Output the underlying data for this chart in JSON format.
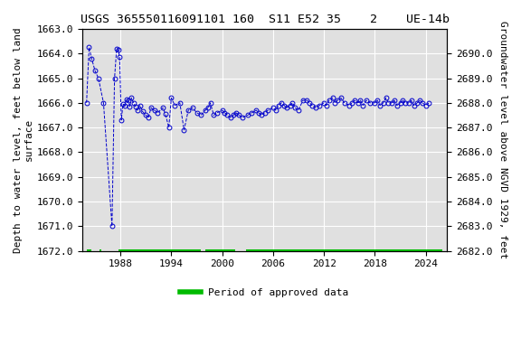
{
  "title": "USGS 365550116091101 160  S11 E52 35    2    UE-14b",
  "ylabel_left": "Depth to water level, feet below land\nsurface",
  "ylabel_right": "Groundwater level above NGVD 1929, feet",
  "ylim_left": [
    1672.0,
    1663.0
  ],
  "ylim_right": [
    2682.0,
    2691.0
  ],
  "xlim": [
    1983.5,
    2026.5
  ],
  "xticks": [
    1988,
    1994,
    2000,
    2006,
    2012,
    2018,
    2024
  ],
  "yticks_left": [
    1663.0,
    1664.0,
    1665.0,
    1666.0,
    1667.0,
    1668.0,
    1669.0,
    1670.0,
    1671.0,
    1672.0
  ],
  "yticks_right": [
    2682.0,
    2683.0,
    2684.0,
    2685.0,
    2686.0,
    2687.0,
    2688.0,
    2689.0,
    2690.0
  ],
  "data_x": [
    1984.0,
    1984.3,
    1984.6,
    1985.0,
    1985.4,
    1986.0,
    1987.0,
    1987.3,
    1987.55,
    1987.75,
    1987.9,
    1988.1,
    1988.3,
    1988.5,
    1988.7,
    1988.9,
    1989.1,
    1989.3,
    1989.55,
    1989.8,
    1990.0,
    1990.3,
    1990.6,
    1991.0,
    1991.3,
    1991.6,
    1992.0,
    1992.4,
    1993.0,
    1993.3,
    1993.7,
    1994.0,
    1994.4,
    1995.0,
    1995.5,
    1996.0,
    1996.5,
    1997.0,
    1997.5,
    1998.0,
    1998.3,
    1998.6,
    1999.0,
    1999.4,
    2000.0,
    2000.3,
    2000.6,
    2001.0,
    2001.3,
    2001.6,
    2002.0,
    2002.4,
    2003.0,
    2003.5,
    2004.0,
    2004.3,
    2004.6,
    2005.0,
    2005.4,
    2006.0,
    2006.3,
    2006.6,
    2007.0,
    2007.3,
    2007.6,
    2008.0,
    2008.3,
    2008.6,
    2009.0,
    2009.5,
    2010.0,
    2010.3,
    2010.6,
    2011.0,
    2011.5,
    2012.0,
    2012.3,
    2012.6,
    2013.0,
    2013.3,
    2013.6,
    2014.0,
    2014.4,
    2015.0,
    2015.3,
    2015.6,
    2016.0,
    2016.3,
    2016.6,
    2017.0,
    2017.4,
    2018.0,
    2018.3,
    2018.6,
    2019.0,
    2019.3,
    2019.6,
    2020.0,
    2020.3,
    2020.6,
    2021.0,
    2021.3,
    2021.6,
    2022.0,
    2022.3,
    2022.6,
    2023.0,
    2023.3,
    2023.6,
    2024.0,
    2024.4
  ],
  "data_y": [
    1666.0,
    1663.75,
    1664.2,
    1664.7,
    1665.0,
    1666.0,
    1671.0,
    1665.0,
    1663.8,
    1663.85,
    1664.15,
    1666.7,
    1666.05,
    1666.1,
    1665.85,
    1665.9,
    1666.15,
    1665.8,
    1666.0,
    1666.15,
    1666.3,
    1666.1,
    1666.35,
    1666.5,
    1666.6,
    1666.2,
    1666.3,
    1666.4,
    1666.2,
    1666.45,
    1667.0,
    1665.8,
    1666.1,
    1666.0,
    1667.1,
    1666.3,
    1666.2,
    1666.4,
    1666.5,
    1666.3,
    1666.2,
    1666.0,
    1666.5,
    1666.4,
    1666.3,
    1666.4,
    1666.5,
    1666.6,
    1666.5,
    1666.4,
    1666.5,
    1666.6,
    1666.5,
    1666.4,
    1666.3,
    1666.4,
    1666.5,
    1666.4,
    1666.3,
    1666.2,
    1666.3,
    1666.1,
    1666.0,
    1666.1,
    1666.2,
    1666.1,
    1666.0,
    1666.2,
    1666.3,
    1665.9,
    1665.9,
    1666.0,
    1666.1,
    1666.2,
    1666.1,
    1666.0,
    1666.1,
    1665.9,
    1665.8,
    1666.0,
    1665.9,
    1665.8,
    1666.0,
    1666.1,
    1666.0,
    1665.9,
    1666.0,
    1665.9,
    1666.1,
    1665.9,
    1666.0,
    1666.0,
    1665.9,
    1666.1,
    1666.0,
    1665.8,
    1666.0,
    1666.0,
    1665.9,
    1666.1,
    1666.0,
    1665.9,
    1666.0,
    1666.0,
    1665.9,
    1666.1,
    1666.0,
    1665.9,
    1666.0,
    1666.1,
    1666.0
  ],
  "approved_periods": [
    [
      1984.0,
      1984.6
    ],
    [
      1985.5,
      1985.75
    ],
    [
      1987.8,
      1997.5
    ],
    [
      1998.0,
      2001.5
    ],
    [
      2002.8,
      2026.0
    ]
  ],
  "line_color": "#0000cc",
  "marker_color": "#0000cc",
  "approved_color": "#00bb00",
  "plot_bg_color": "#e0e0e0",
  "fig_bg_color": "#ffffff",
  "grid_color": "#ffffff",
  "title_fontsize": 9.5,
  "axis_fontsize": 8,
  "tick_fontsize": 8,
  "legend_label": "Period of approved data"
}
